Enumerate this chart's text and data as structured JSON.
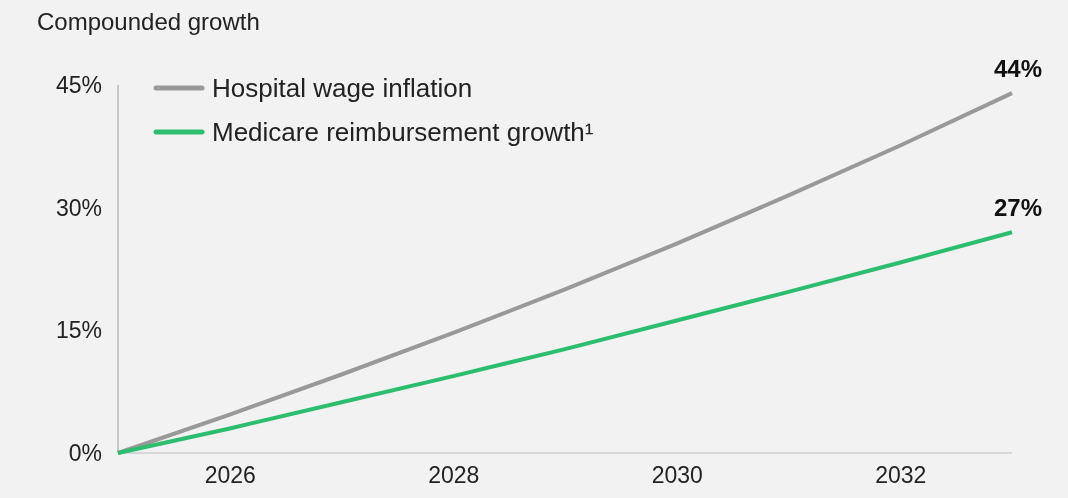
{
  "chart_data": {
    "type": "line",
    "ylabel": "Compounded growth",
    "x": [
      2025,
      2026,
      2027,
      2028,
      2029,
      2030,
      2031,
      2032,
      2033
    ],
    "xlim": [
      2025,
      2033
    ],
    "xticks": [
      2026,
      2028,
      2030,
      2032
    ],
    "ylim": [
      0,
      45
    ],
    "yticks": [
      {
        "value": 0,
        "label": "0%"
      },
      {
        "value": 15,
        "label": "15%"
      },
      {
        "value": 30,
        "label": "30%"
      },
      {
        "value": 45,
        "label": "45%"
      }
    ],
    "grid": false,
    "legend": "top left",
    "marker": "none",
    "line_style": "solid",
    "series": [
      {
        "name": "Hospital wage inflation",
        "color": "#999999",
        "values": [
          0,
          4.7,
          9.6,
          14.7,
          20,
          25.6,
          31.5,
          37.6,
          44
        ],
        "value_labels": [
          null,
          null,
          null,
          null,
          null,
          null,
          null,
          null,
          "44%"
        ]
      },
      {
        "name": "Medicare reimbursement growth¹",
        "color": "#2dbd6e",
        "values": [
          0,
          3,
          6.2,
          9.4,
          12.7,
          16.2,
          19.7,
          23.3,
          27
        ],
        "value_labels": [
          null,
          null,
          null,
          null,
          null,
          null,
          null,
          null,
          "27%"
        ]
      }
    ]
  }
}
